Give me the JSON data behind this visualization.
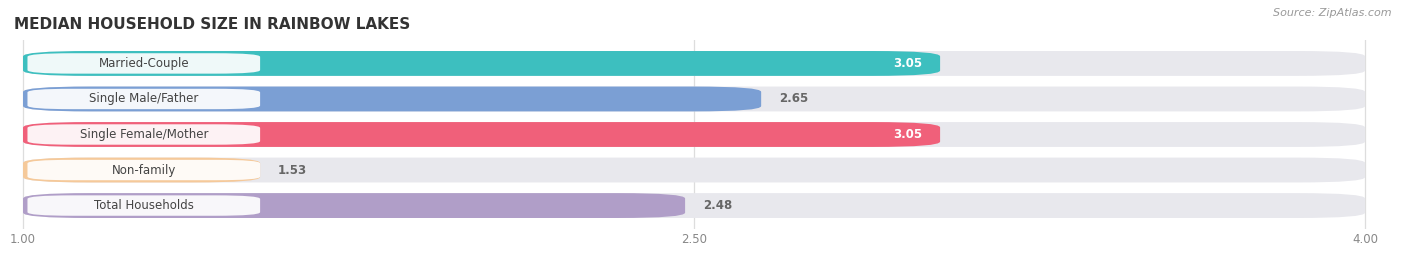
{
  "title": "MEDIAN HOUSEHOLD SIZE IN RAINBOW LAKES",
  "source": "Source: ZipAtlas.com",
  "categories": [
    "Married-Couple",
    "Single Male/Father",
    "Single Female/Mother",
    "Non-family",
    "Total Households"
  ],
  "values": [
    3.05,
    2.65,
    3.05,
    1.53,
    2.48
  ],
  "bar_colors": [
    "#3dbfbf",
    "#7b9fd4",
    "#f0607a",
    "#f5c99a",
    "#b09ec8"
  ],
  "xmin": 1.0,
  "xmax": 4.0,
  "xticks": [
    1.0,
    2.5,
    4.0
  ],
  "xtick_labels": [
    "1.00",
    "2.50",
    "4.00"
  ],
  "background_color": "#ffffff",
  "bar_bg_color": "#e8e8ed",
  "value_color_inside": "#ffffff",
  "value_color_outside": "#666666",
  "title_color": "#333333",
  "source_color": "#999999",
  "label_text_color": "#444444",
  "grid_color": "#dddddd",
  "bar_height": 0.7,
  "value_threshold": 2.8
}
